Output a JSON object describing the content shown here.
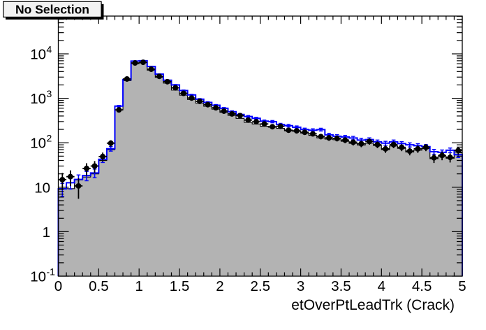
{
  "title_box": {
    "label": "No Selection",
    "fill": "#f2f2f2",
    "border_color": "#000000",
    "shadow_color": "#000000"
  },
  "chart_data": {
    "type": "histogram-overlay",
    "title": "No Selection",
    "xlabel": "etOverPtLeadTrk (Crack)",
    "ylabel": "",
    "x_range": [
      0,
      5
    ],
    "y_range": [
      0.1,
      70700
    ],
    "y_scale": "log",
    "n_bins": 50,
    "x_tick_labels": [
      "0",
      "0.5",
      "1",
      "1.5",
      "2",
      "2.5",
      "3",
      "3.5",
      "4",
      "4.5",
      "5"
    ],
    "y_tick_exponents": [
      -1,
      0,
      1,
      2,
      3,
      4
    ],
    "grid": false,
    "legend": false,
    "series": [
      {
        "name": "reference-filled-histogram",
        "style": "filled-steps",
        "fill_color": "#b3b3b3",
        "line_color": "#000000",
        "values": [
          9.4,
          9.3,
          14.6,
          17,
          20,
          40,
          70,
          545,
          2500,
          6000,
          6300,
          4300,
          2970,
          2200,
          1530,
          1180,
          940,
          780,
          663,
          571,
          486,
          413,
          354,
          289,
          265,
          235,
          224,
          211,
          186,
          181,
          165,
          147,
          129,
          121,
          117,
          108,
          97,
          89,
          98,
          87,
          70,
          85,
          75,
          62,
          68,
          74,
          44,
          49,
          45,
          62
        ]
      },
      {
        "name": "comparison-line-histogram",
        "style": "steps-with-errors",
        "line_color": "#0000ff",
        "values": [
          9.2,
          12.6,
          15.0,
          18.3,
          21,
          42.5,
          73.5,
          668,
          2640,
          6870,
          7000,
          5200,
          3500,
          2550,
          2000,
          1495,
          1195,
          955,
          810,
          698,
          596,
          500,
          433,
          390,
          354,
          307,
          299,
          257,
          243,
          224,
          199,
          192,
          198,
          151,
          140,
          135,
          128,
          115,
          118,
          105,
          98,
          105,
          96,
          90,
          86,
          82,
          63,
          61,
          68,
          54
        ],
        "errors": [
          3.0,
          3.5,
          3.9,
          4.3,
          4.6,
          6.5,
          8.6,
          25.8,
          51.4,
          82.9,
          83.7,
          72.1,
          59.2,
          50.5,
          44.7,
          38.7,
          34.6,
          30.9,
          28.5,
          26.4,
          24.4,
          22.4,
          20.8,
          19.7,
          18.8,
          17.5,
          17.3,
          16.0,
          15.6,
          15.0,
          14.1,
          13.9,
          14.1,
          12.3,
          11.8,
          11.6,
          11.3,
          10.7,
          10.9,
          10.2,
          9.9,
          10.2,
          9.8,
          9.5,
          9.3,
          9.1,
          7.9,
          7.8,
          8.2,
          7.3
        ]
      },
      {
        "name": "data-points",
        "style": "markers-with-errors",
        "marker": "full-circle",
        "color": "#000000",
        "values": [
          14.8,
          17.3,
          10.7,
          26.5,
          30,
          49,
          98,
          550,
          2720,
          6240,
          6460,
          4520,
          3120,
          2365,
          1722,
          1294,
          1014,
          855,
          719,
          612,
          515,
          446,
          408,
          324,
          297,
          265,
          230,
          235,
          192,
          186,
          172,
          159,
          138,
          129,
          125,
          115,
          103,
          95,
          107,
          91,
          73,
          91,
          79,
          65,
          73,
          79,
          46,
          52,
          47,
          67
        ],
        "errors": [
          6.2,
          6.7,
          5.2,
          8.2,
          8.8,
          11.2,
          15.8,
          37.5,
          83,
          126,
          129,
          108,
          89,
          78,
          66,
          57.5,
          51,
          47,
          43,
          39.6,
          36.3,
          33.8,
          32.3,
          28.8,
          27.6,
          26,
          24.3,
          24.5,
          22.2,
          21.8,
          21,
          20.2,
          18.8,
          18.2,
          17.9,
          17.2,
          16.2,
          15.6,
          16.5,
          15.3,
          13.7,
          15.3,
          14.2,
          12.9,
          13.7,
          14.2,
          10.9,
          11.5,
          11,
          13.1
        ]
      }
    ]
  },
  "layout_colors": {
    "background": "#ffffff",
    "frame": "#000000"
  }
}
